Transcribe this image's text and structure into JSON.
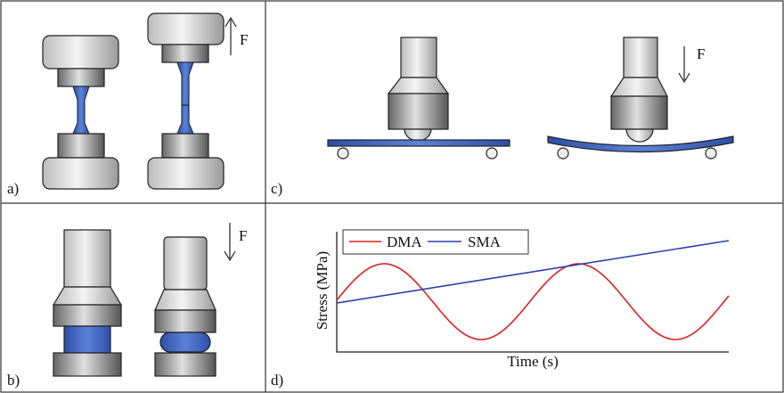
{
  "panels": [
    {
      "label": "a)"
    },
    {
      "label": "b)"
    },
    {
      "label": "c)"
    },
    {
      "label": "d)"
    }
  ],
  "force_label": "F",
  "plot": {
    "legend": [
      "DMA",
      "SMA"
    ],
    "y_label": "Stress (MPa)",
    "x_label": "Time (s)"
  }
}
